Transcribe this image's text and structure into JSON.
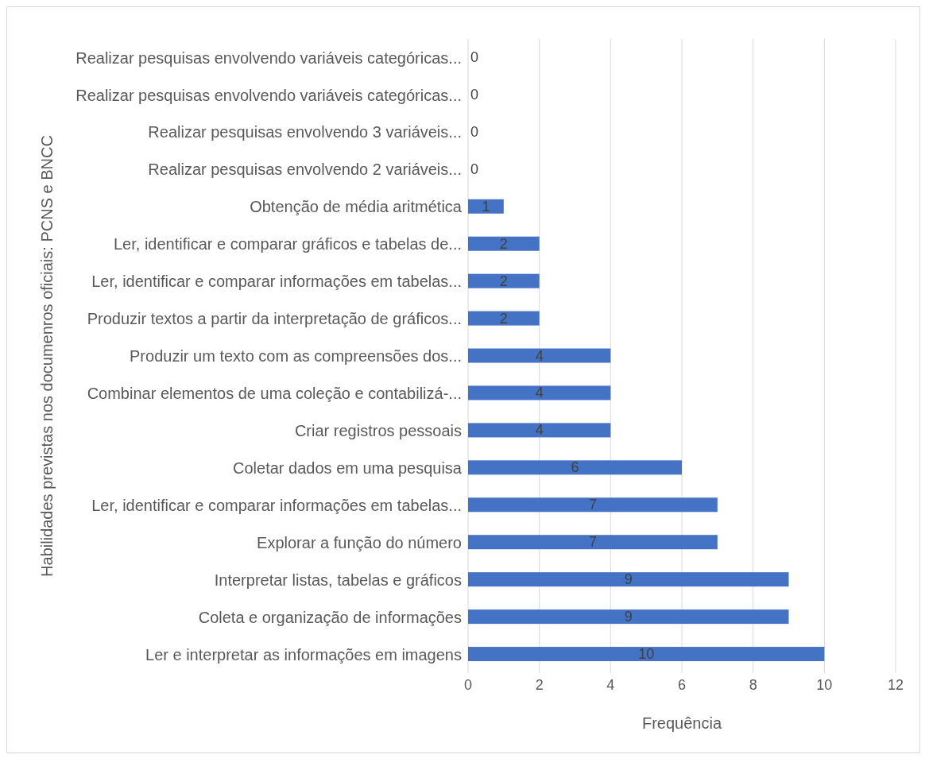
{
  "chart_data": {
    "type": "bar",
    "orientation": "horizontal",
    "categories": [
      "Realizar pesquisas envolvendo variáveis categóricas...",
      "Realizar pesquisas  envolvendo variáveis categóricas...",
      "Realizar pesquisas envolvendo 3 variáveis...",
      "Realizar pesquisas envolvendo 2 variáveis...",
      "Obtenção de média aritmética",
      "Ler, identificar e comparar gráficos e tabelas de...",
      "Ler, identificar e comparar informações em tabelas...",
      "Produzir textos a partir da interpretação de gráficos...",
      "Produzir um texto com as compreensões dos...",
      "Combinar elementos de uma coleção e contabilizá-...",
      "Criar registros pessoais",
      "Coletar dados em uma pesquisa",
      "Ler, identificar e comparar informações em tabelas...",
      "Explorar a função do número",
      "Interpretar listas, tabelas e gráficos",
      "Coleta e organização de informações",
      "Ler e interpretar as informações em imagens"
    ],
    "values": [
      0,
      0,
      0,
      0,
      1,
      2,
      2,
      2,
      4,
      4,
      4,
      6,
      7,
      7,
      9,
      9,
      10
    ],
    "color": "#4472c4",
    "xlim": [
      0,
      12
    ],
    "xticks": [
      0,
      2,
      4,
      6,
      8,
      10,
      12
    ],
    "xlabel": "Frequência",
    "ylabel": "Habilidades  previstas nos documenros oficiais: PCNS e BNCC",
    "grid": "x",
    "data_labels": true
  }
}
